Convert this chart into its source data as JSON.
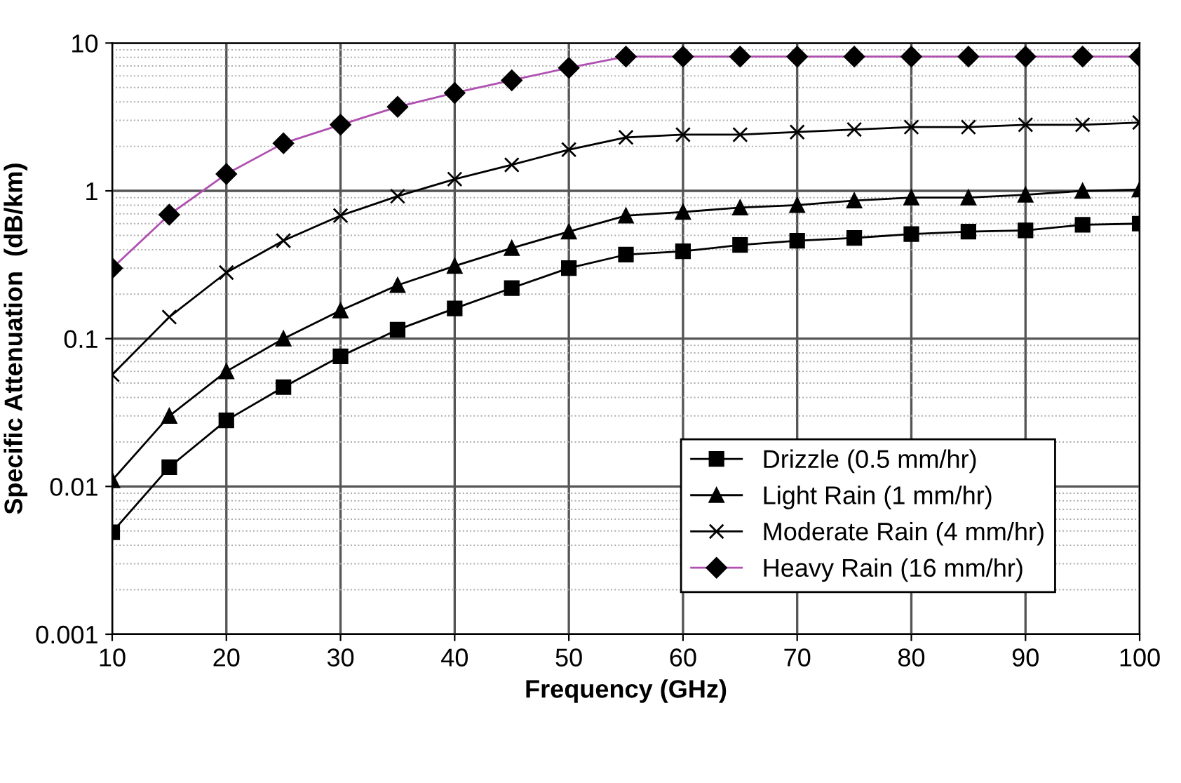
{
  "chart_data": {
    "type": "line",
    "xlabel": "Frequency (GHz)",
    "ylabel": "Specific Attenuation  (dB/km)",
    "x": [
      10,
      15,
      20,
      25,
      30,
      35,
      40,
      45,
      50,
      55,
      60,
      65,
      70,
      75,
      80,
      85,
      90,
      95,
      100
    ],
    "series": [
      {
        "name": "Drizzle (0.5 mm/hr)",
        "color": "#000000",
        "marker": "square",
        "values": [
          0.0049,
          0.0135,
          0.028,
          0.047,
          0.076,
          0.115,
          0.16,
          0.22,
          0.3,
          0.37,
          0.39,
          0.43,
          0.46,
          0.48,
          0.51,
          0.53,
          0.54,
          0.59,
          0.6
        ]
      },
      {
        "name": "Light Rain (1 mm/hr)",
        "color": "#000000",
        "marker": "triangle",
        "values": [
          0.011,
          0.03,
          0.06,
          0.1,
          0.155,
          0.23,
          0.31,
          0.41,
          0.53,
          0.68,
          0.72,
          0.77,
          0.8,
          0.86,
          0.9,
          0.9,
          0.94,
          1.0,
          1.02
        ]
      },
      {
        "name": "Moderate Rain (4 mm/hr)",
        "color": "#000000",
        "marker": "cross",
        "values": [
          0.057,
          0.14,
          0.28,
          0.46,
          0.68,
          0.92,
          1.2,
          1.5,
          1.9,
          2.3,
          2.4,
          2.4,
          2.5,
          2.6,
          2.7,
          2.7,
          2.8,
          2.8,
          2.9
        ]
      },
      {
        "name": "Heavy Rain (16 mm/hr)",
        "color": "#b050b0",
        "marker": "diamond",
        "values": [
          0.3,
          0.69,
          1.3,
          2.1,
          2.8,
          3.7,
          4.6,
          5.6,
          6.8,
          8.1,
          8.1,
          8.1,
          8.1,
          8.1,
          8.1,
          8.1,
          8.1,
          8.1,
          8.1
        ]
      }
    ],
    "log": "y",
    "xlim": [
      10,
      100
    ],
    "ylim": [
      0.001,
      10
    ],
    "xticks": [
      10,
      20,
      30,
      40,
      50,
      60,
      70,
      80,
      90,
      100
    ],
    "yticks": [
      0.001,
      0.01,
      0.1,
      1,
      10
    ],
    "grid": true,
    "legend": "lower right",
    "line_style": "solid"
  }
}
